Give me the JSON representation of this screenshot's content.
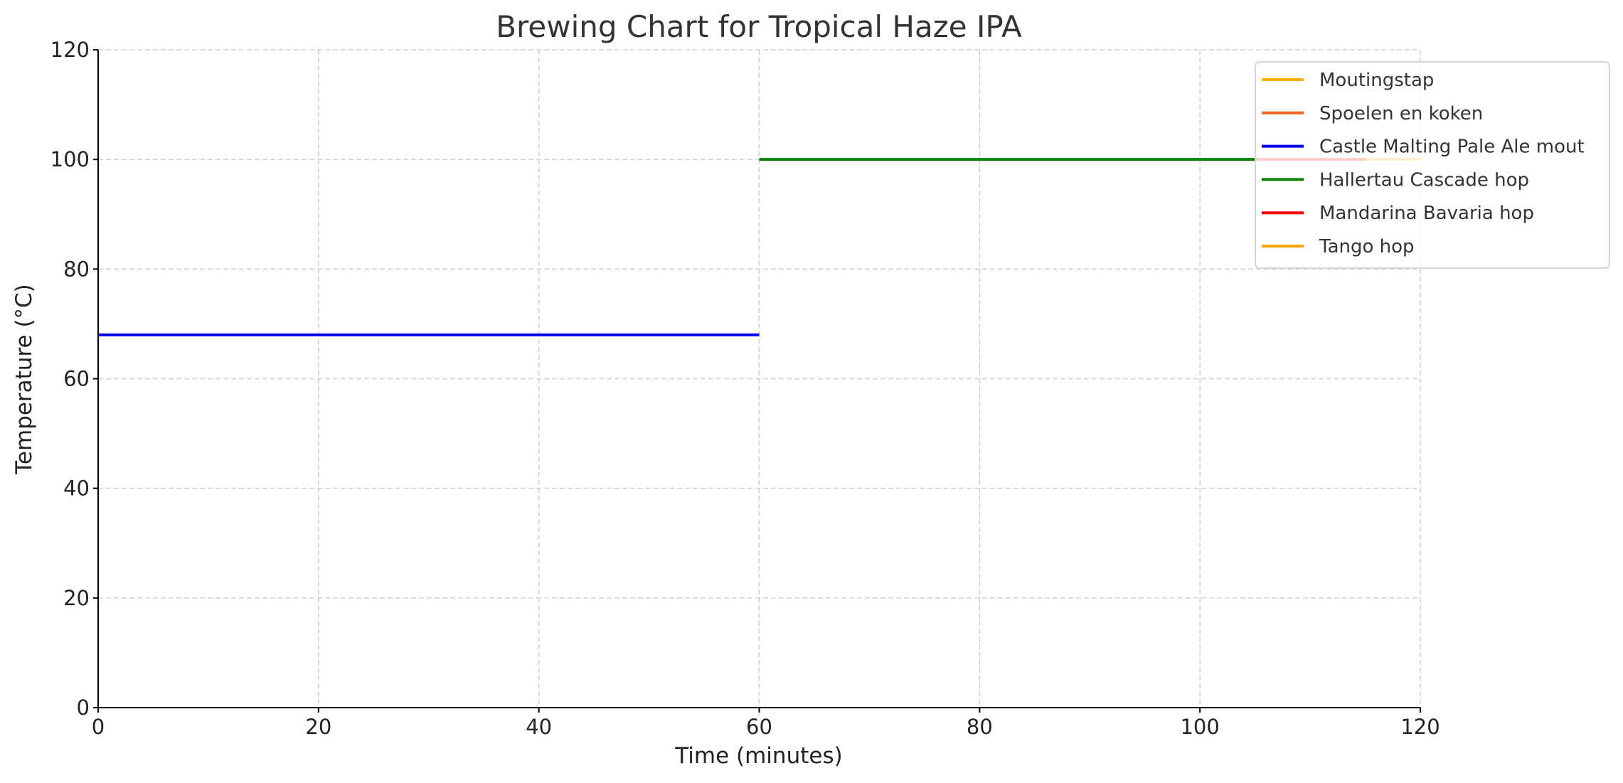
{
  "chart_data": {
    "type": "line",
    "title": "Brewing Chart for Tropical Haze IPA",
    "xlabel": "Time (minutes)",
    "ylabel": "Temperature (°C)",
    "xlim": [
      0,
      120
    ],
    "ylim": [
      0,
      120
    ],
    "xticks": [
      0,
      20,
      40,
      60,
      80,
      100,
      120
    ],
    "yticks": [
      0,
      20,
      40,
      60,
      80,
      100,
      120
    ],
    "grid": true,
    "legend_position": "top-right",
    "series": [
      {
        "name": "Moutingstap",
        "color": "#FFB000",
        "points": []
      },
      {
        "name": "Spoelen en koken",
        "color": "#F26522",
        "points": []
      },
      {
        "name": "Castle Malting Pale Ale mout",
        "color": "#0000FF",
        "points": [
          [
            0,
            68
          ],
          [
            60,
            68
          ]
        ]
      },
      {
        "name": "Hallertau Cascade hop",
        "color": "#008000",
        "points": [
          [
            60,
            100
          ],
          [
            105,
            100
          ]
        ]
      },
      {
        "name": "Mandarina Bavaria hop",
        "color": "#FF0000",
        "points": [
          [
            105,
            100
          ],
          [
            115,
            100
          ]
        ]
      },
      {
        "name": "Tango hop",
        "color": "#FFA500",
        "points": [
          [
            115,
            100
          ],
          [
            120,
            100
          ]
        ]
      }
    ]
  }
}
